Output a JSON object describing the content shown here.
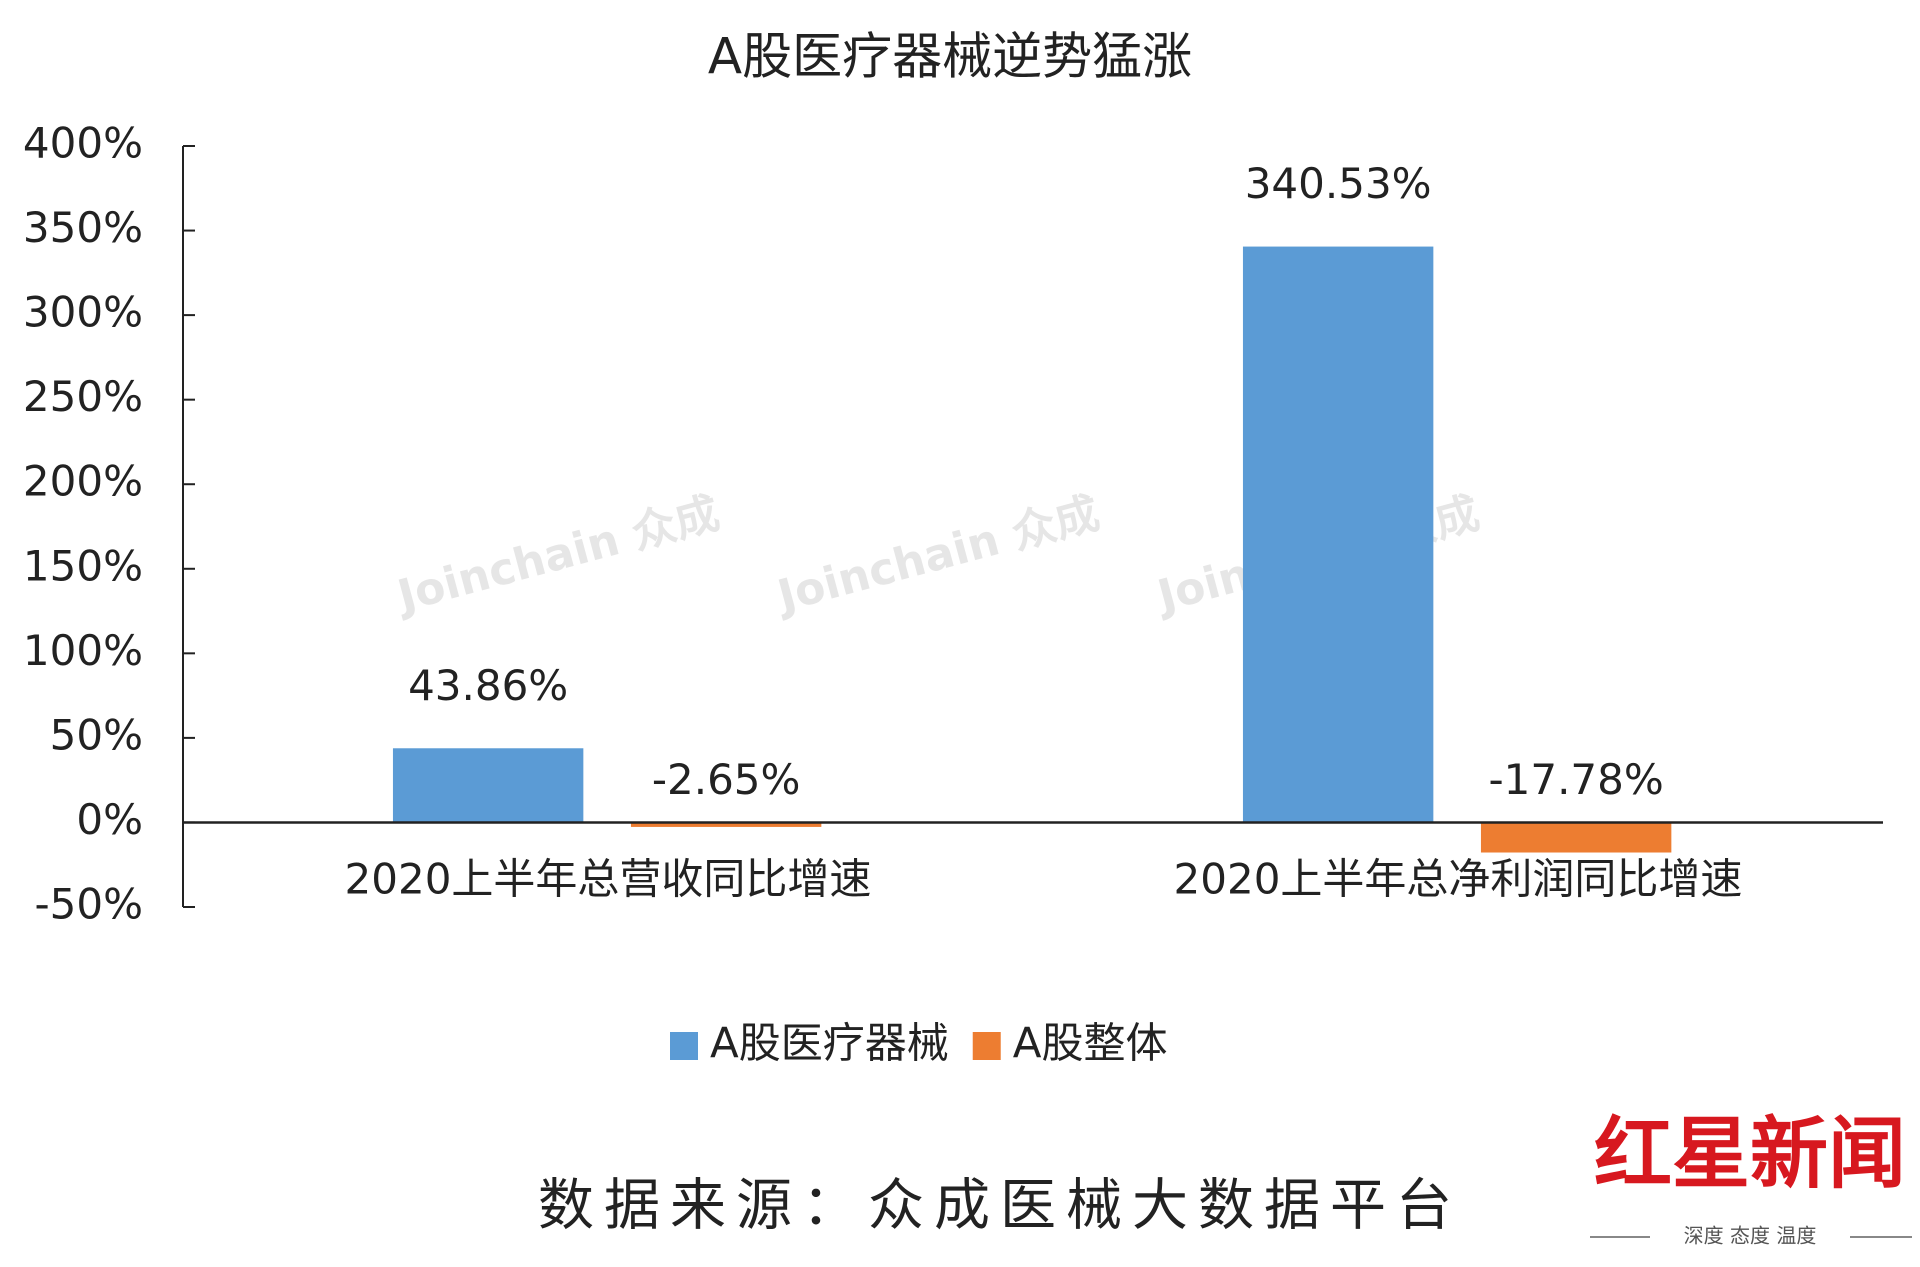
{
  "chart_data": {
    "type": "bar",
    "title": "A股医疗器械逆势猛涨",
    "categories": [
      "2020上半年总营收同比增速",
      "2020上半年总净利润同比增速"
    ],
    "series": [
      {
        "name": "A股医疗器械",
        "color": "#5b9bd5",
        "values": [
          43.86,
          340.53
        ],
        "value_labels": [
          "43.86%",
          "340.53%"
        ]
      },
      {
        "name": "A股整体",
        "color": "#ed7d31",
        "values": [
          -2.65,
          -17.78
        ],
        "value_labels": [
          "-2.65%",
          "-17.78%"
        ]
      }
    ],
    "ylim": [
      -50,
      400
    ],
    "yticks": [
      {
        "value": -50,
        "label": "-50%"
      },
      {
        "value": 0,
        "label": "0%"
      },
      {
        "value": 50,
        "label": "50%"
      },
      {
        "value": 100,
        "label": "100%"
      },
      {
        "value": 150,
        "label": "150%"
      },
      {
        "value": 200,
        "label": "200%"
      },
      {
        "value": 250,
        "label": "250%"
      },
      {
        "value": 300,
        "label": "300%"
      },
      {
        "value": 350,
        "label": "350%"
      },
      {
        "value": 400,
        "label": "400%"
      }
    ],
    "legend": "bottom",
    "watermark": "Joinchain 众成",
    "source": "数据来源：众成医械大数据平台",
    "logo": "红星新闻",
    "slogan": "深度 态度 温度"
  }
}
